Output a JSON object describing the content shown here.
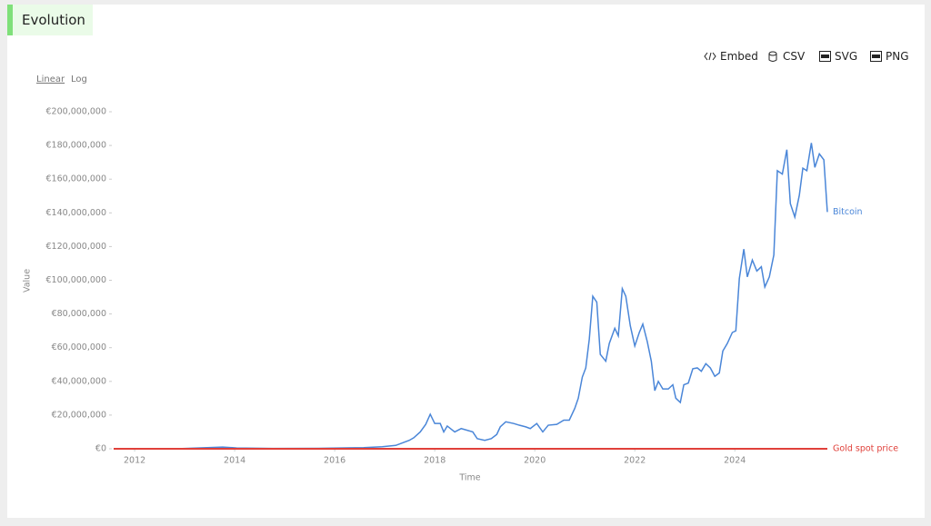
{
  "header": {
    "title": "Evolution"
  },
  "toolbar": [
    "Embed",
    "CSV",
    "SVG",
    "PNG"
  ],
  "scale_options": [
    "Linear",
    "Log"
  ],
  "chart_data": {
    "type": "line",
    "log_scale": false,
    "grid": false,
    "x_label": "Time",
    "y_label": "Value",
    "xlim": [
      2011.58,
      2025.85
    ],
    "xticks": [
      2012,
      2014,
      2016,
      2018,
      2020,
      2022,
      2024
    ],
    "ylim": [
      0,
      200000000
    ],
    "yticks": [
      {
        "value": 0,
        "label": "€0"
      },
      {
        "value": 20000000,
        "label": "€20,000,000"
      },
      {
        "value": 40000000,
        "label": "€40,000,000"
      },
      {
        "value": 60000000,
        "label": "€60,000,000"
      },
      {
        "value": 80000000,
        "label": "€80,000,000"
      },
      {
        "value": 100000000,
        "label": "€100,000,000"
      },
      {
        "value": 120000000,
        "label": "€120,000,000"
      },
      {
        "value": 140000000,
        "label": "€140,000,000"
      },
      {
        "value": 160000000,
        "label": "€160,000,000"
      },
      {
        "value": 180000000,
        "label": "€180,000,000"
      },
      {
        "value": 200000000,
        "label": "€200,000,000"
      }
    ],
    "series": [
      {
        "name": "Bitcoin",
        "color": "#4a86d8",
        "x": [
          2011.58,
          2012.95,
          2013.76,
          2014.04,
          2014.76,
          2015.67,
          2016.58,
          2016.95,
          2017.22,
          2017.31,
          2017.49,
          2017.58,
          2017.71,
          2017.82,
          2017.91,
          2018.0,
          2018.11,
          2018.18,
          2018.25,
          2018.4,
          2018.53,
          2018.76,
          2018.85,
          2019.0,
          2019.13,
          2019.24,
          2019.31,
          2019.42,
          2019.58,
          2019.69,
          2019.82,
          2019.91,
          2020.04,
          2020.16,
          2020.27,
          2020.44,
          2020.58,
          2020.69,
          2020.8,
          2020.87,
          2020.95,
          2021.02,
          2021.09,
          2021.16,
          2021.24,
          2021.31,
          2021.42,
          2021.49,
          2021.6,
          2021.67,
          2021.75,
          2021.82,
          2021.91,
          2022.0,
          2022.09,
          2022.16,
          2022.25,
          2022.33,
          2022.4,
          2022.47,
          2022.56,
          2022.67,
          2022.76,
          2022.82,
          2022.91,
          2022.98,
          2023.07,
          2023.16,
          2023.25,
          2023.33,
          2023.42,
          2023.51,
          2023.6,
          2023.69,
          2023.76,
          2023.85,
          2023.95,
          2024.02,
          2024.09,
          2024.18,
          2024.25,
          2024.35,
          2024.44,
          2024.53,
          2024.6,
          2024.69,
          2024.78,
          2024.85,
          2024.95,
          2025.04,
          2025.11,
          2025.2,
          2025.29,
          2025.36,
          2025.44,
          2025.53,
          2025.6,
          2025.69,
          2025.78,
          2025.85
        ],
        "values": [
          0,
          100000,
          1000000,
          500000,
          200000,
          300000,
          700000,
          1200000,
          2000000,
          3000000,
          5000000,
          6500000,
          10000000,
          14500000,
          20500000,
          15000000,
          15000000,
          10000000,
          13500000,
          10000000,
          12000000,
          10000000,
          6000000,
          5000000,
          6000000,
          8500000,
          13000000,
          16000000,
          15000000,
          14000000,
          13000000,
          12000000,
          15000000,
          10000000,
          14000000,
          14500000,
          17000000,
          17000000,
          24000000,
          30000000,
          42500000,
          48000000,
          65000000,
          90500000,
          87000000,
          56000000,
          52000000,
          62500000,
          71500000,
          67000000,
          95000000,
          90500000,
          73000000,
          61000000,
          69000000,
          74000000,
          63500000,
          52000000,
          34500000,
          40000000,
          35500000,
          35500000,
          38000000,
          30000000,
          27500000,
          38000000,
          39000000,
          47500000,
          48000000,
          46000000,
          50500000,
          48000000,
          43000000,
          45000000,
          58000000,
          62500000,
          69000000,
          70000000,
          101000000,
          118500000,
          102000000,
          112000000,
          105500000,
          108000000,
          96000000,
          102000000,
          115000000,
          165000000,
          163000000,
          177500000,
          145500000,
          137500000,
          150500000,
          166500000,
          165000000,
          181500000,
          167000000,
          175000000,
          171500000,
          140500000
        ]
      },
      {
        "name": "Gold spot price",
        "color": "#e0403a",
        "x": [
          2011.58,
          2013,
          2014,
          2015,
          2016,
          2017,
          2018,
          2019,
          2020,
          2021,
          2022,
          2023,
          2024,
          2025,
          2025.85
        ],
        "values": [
          1300,
          1300,
          950,
          1050,
          1100,
          1100,
          1100,
          1250,
          1500,
          1500,
          1700,
          1800,
          2100,
          2800,
          2900
        ]
      }
    ]
  }
}
